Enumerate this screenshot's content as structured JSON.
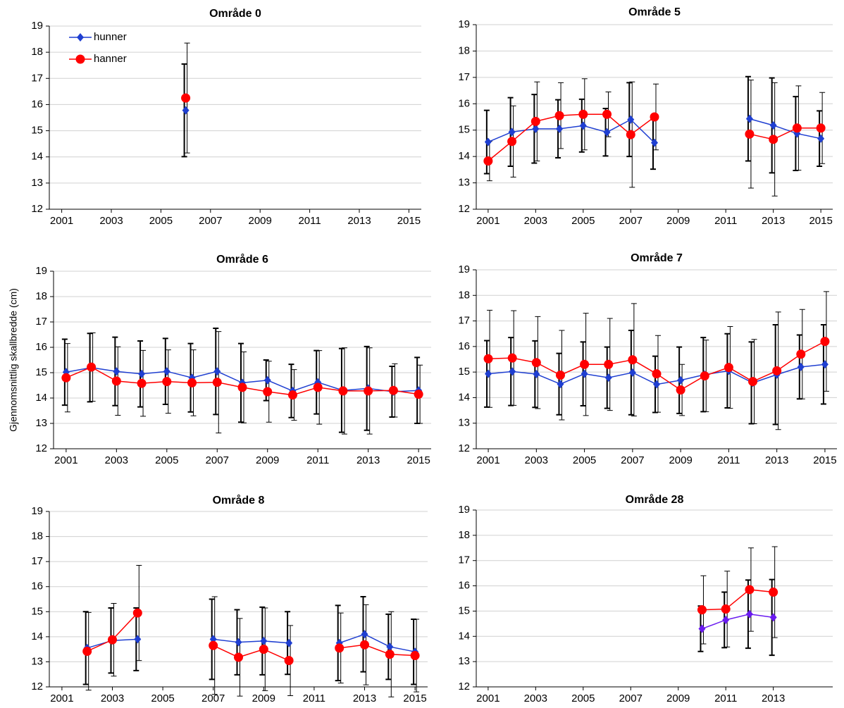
{
  "chart_data": [
    {
      "type": "line",
      "title": "Område 0",
      "legend": "upper left",
      "grid": true,
      "x": [
        2001,
        2002,
        2003,
        2004,
        2005,
        2006,
        2007,
        2008,
        2009,
        2010,
        2011,
        2012,
        2013,
        2014,
        2015
      ],
      "xlim": [
        2000.5,
        2015.5
      ],
      "xticks": [
        2001,
        2003,
        2005,
        2007,
        2009,
        2011,
        2013,
        2015
      ],
      "ylim": [
        12,
        19
      ],
      "yticks": [
        12,
        13,
        14,
        15,
        16,
        17,
        18,
        19
      ],
      "series": [
        {
          "name": "hunner",
          "color": "#1f3fd1",
          "marker": "diamond",
          "values": [
            null,
            null,
            null,
            null,
            null,
            15.78,
            null,
            null,
            null,
            null,
            null,
            null,
            null,
            null,
            null
          ],
          "errors": [
            null,
            null,
            null,
            null,
            null,
            1.77,
            null,
            null,
            null,
            null,
            null,
            null,
            null,
            null,
            null
          ]
        },
        {
          "name": "hanner",
          "color": "#ff0000",
          "marker": "circle",
          "values": [
            null,
            null,
            null,
            null,
            null,
            16.25,
            null,
            null,
            null,
            null,
            null,
            null,
            null,
            null,
            null
          ],
          "errors": [
            null,
            null,
            null,
            null,
            null,
            2.1,
            null,
            null,
            null,
            null,
            null,
            null,
            null,
            null,
            null
          ]
        }
      ]
    },
    {
      "type": "line",
      "title": "Område 5",
      "legend": false,
      "grid": true,
      "x": [
        2001,
        2002,
        2003,
        2004,
        2005,
        2006,
        2007,
        2008,
        2009,
        2010,
        2011,
        2012,
        2013,
        2014,
        2015
      ],
      "xlim": [
        2000.5,
        2015.5
      ],
      "xticks": [
        2001,
        2003,
        2005,
        2007,
        2009,
        2011,
        2013,
        2015
      ],
      "ylim": [
        12,
        19
      ],
      "yticks": [
        12,
        13,
        14,
        15,
        16,
        17,
        18,
        19
      ],
      "series": [
        {
          "name": "hunner",
          "color": "#1f3fd1",
          "marker": "diamond",
          "values": [
            14.55,
            14.93,
            15.05,
            15.05,
            15.17,
            14.92,
            15.4,
            14.52,
            null,
            null,
            null,
            15.43,
            15.18,
            14.87,
            14.68
          ],
          "errors": [
            1.2,
            1.3,
            1.3,
            1.1,
            1.0,
            0.9,
            1.4,
            1.0,
            null,
            null,
            null,
            1.6,
            1.8,
            1.4,
            1.05
          ]
        },
        {
          "name": "hanner",
          "color": "#ff0000",
          "marker": "circle",
          "values": [
            13.83,
            14.57,
            15.33,
            15.55,
            15.6,
            15.6,
            14.83,
            15.5,
            null,
            null,
            null,
            14.85,
            14.65,
            15.08,
            15.08
          ],
          "errors": [
            0.75,
            1.35,
            1.5,
            1.25,
            1.35,
            0.85,
            2.0,
            1.25,
            null,
            null,
            null,
            2.05,
            2.15,
            1.6,
            1.35
          ]
        }
      ]
    },
    {
      "type": "line",
      "title": "Område 6",
      "ylabel": "Gjennomsnittlig  skallbredde  (cm)",
      "legend": false,
      "grid": true,
      "x": [
        2001,
        2002,
        2003,
        2004,
        2005,
        2006,
        2007,
        2008,
        2009,
        2010,
        2011,
        2012,
        2013,
        2014,
        2015
      ],
      "xlim": [
        2000.5,
        2015.5
      ],
      "xticks": [
        2001,
        2003,
        2005,
        2007,
        2009,
        2011,
        2013,
        2015
      ],
      "ylim": [
        12,
        19
      ],
      "yticks": [
        12,
        13,
        14,
        15,
        16,
        17,
        18,
        19
      ],
      "series": [
        {
          "name": "hunner",
          "color": "#1f3fd1",
          "marker": "diamond",
          "values": [
            15.02,
            15.2,
            15.05,
            14.95,
            15.05,
            14.8,
            15.05,
            14.6,
            14.7,
            14.28,
            14.62,
            14.3,
            14.38,
            14.25,
            14.3
          ],
          "errors": [
            1.3,
            1.35,
            1.35,
            1.3,
            1.3,
            1.35,
            1.7,
            1.55,
            0.8,
            1.05,
            1.25,
            1.65,
            1.65,
            1.0,
            1.3
          ]
        },
        {
          "name": "hanner",
          "color": "#ff0000",
          "marker": "circle",
          "values": [
            14.8,
            15.22,
            14.67,
            14.58,
            14.65,
            14.6,
            14.62,
            14.42,
            14.25,
            14.12,
            14.42,
            14.28,
            14.28,
            14.3,
            14.15
          ],
          "errors": [
            1.35,
            1.35,
            1.35,
            1.3,
            1.25,
            1.3,
            2.0,
            1.4,
            1.2,
            1.0,
            1.45,
            1.7,
            1.7,
            1.05,
            1.15
          ]
        }
      ]
    },
    {
      "type": "line",
      "title": "Område 7",
      "legend": false,
      "grid": true,
      "x": [
        2001,
        2002,
        2003,
        2004,
        2005,
        2006,
        2007,
        2008,
        2009,
        2010,
        2011,
        2012,
        2013,
        2014,
        2015
      ],
      "xlim": [
        2000.5,
        2015.5
      ],
      "xticks": [
        2001,
        2003,
        2005,
        2007,
        2009,
        2011,
        2013,
        2015
      ],
      "ylim": [
        12,
        19
      ],
      "yticks": [
        12,
        13,
        14,
        15,
        16,
        17,
        18,
        19
      ],
      "series": [
        {
          "name": "hunner",
          "color": "#1f3fd1",
          "marker": "diamond",
          "values": [
            14.93,
            15.02,
            14.92,
            14.53,
            14.93,
            14.78,
            14.98,
            14.52,
            14.68,
            14.9,
            15.05,
            14.58,
            14.9,
            15.2,
            15.3
          ],
          "errors": [
            1.3,
            1.33,
            1.3,
            1.2,
            1.25,
            1.2,
            1.65,
            1.1,
            1.3,
            1.45,
            1.45,
            1.6,
            1.95,
            1.25,
            1.55
          ]
        },
        {
          "name": "hanner",
          "color": "#ff0000",
          "marker": "circle",
          "values": [
            15.52,
            15.55,
            15.37,
            14.88,
            15.3,
            15.3,
            15.48,
            14.93,
            14.3,
            14.85,
            15.18,
            14.63,
            15.05,
            15.7,
            16.2
          ],
          "errors": [
            1.9,
            1.85,
            1.8,
            1.75,
            2.0,
            1.8,
            2.2,
            1.5,
            1.0,
            1.4,
            1.6,
            1.65,
            2.3,
            1.75,
            1.95
          ]
        }
      ]
    },
    {
      "type": "line",
      "title": "Område 8",
      "legend": false,
      "grid": true,
      "x": [
        2001,
        2002,
        2003,
        2004,
        2005,
        2006,
        2007,
        2008,
        2009,
        2010,
        2011,
        2012,
        2013,
        2014,
        2015
      ],
      "xlim": [
        2000.5,
        2015.5
      ],
      "xticks": [
        2001,
        2003,
        2005,
        2007,
        2009,
        2011,
        2013,
        2015
      ],
      "ylim": [
        12,
        19
      ],
      "yticks": [
        12,
        13,
        14,
        15,
        16,
        17,
        18,
        19
      ],
      "series": [
        {
          "name": "hunner",
          "color": "#1f3fd1",
          "marker": "diamond",
          "values": [
            null,
            13.55,
            13.85,
            13.9,
            null,
            null,
            13.9,
            13.78,
            13.83,
            13.75,
            null,
            13.75,
            14.1,
            13.6,
            13.4
          ],
          "errors": [
            null,
            1.45,
            1.3,
            1.25,
            null,
            null,
            1.6,
            1.3,
            1.35,
            1.25,
            null,
            1.5,
            1.5,
            1.3,
            1.3
          ]
        },
        {
          "name": "hanner",
          "color": "#ff0000",
          "marker": "circle",
          "values": [
            null,
            13.42,
            13.88,
            14.95,
            null,
            null,
            13.65,
            13.18,
            13.5,
            13.05,
            null,
            13.55,
            13.68,
            13.3,
            13.25
          ],
          "errors": [
            null,
            1.55,
            1.45,
            1.9,
            null,
            null,
            1.95,
            1.55,
            1.65,
            1.4,
            null,
            1.4,
            1.6,
            1.7,
            1.45
          ]
        }
      ]
    },
    {
      "type": "line",
      "title": "Område 28",
      "legend": false,
      "grid": true,
      "x": [
        2001,
        2002,
        2003,
        2004,
        2005,
        2006,
        2007,
        2008,
        2009,
        2010,
        2011,
        2012,
        2013,
        2014,
        2015
      ],
      "xlim": [
        2000.5,
        2015.5
      ],
      "xticks": [
        2001,
        2003,
        2005,
        2007,
        2009,
        2011,
        2013
      ],
      "ylim": [
        12,
        19
      ],
      "yticks": [
        12,
        13,
        14,
        15,
        16,
        17,
        18,
        19
      ],
      "series": [
        {
          "name": "hunner",
          "color": "#6a1bf0",
          "marker": "diamond",
          "values": [
            null,
            null,
            null,
            null,
            null,
            null,
            null,
            null,
            null,
            14.3,
            14.65,
            14.88,
            14.75,
            null,
            null
          ],
          "errors": [
            null,
            null,
            null,
            null,
            null,
            null,
            null,
            null,
            null,
            0.9,
            1.1,
            1.35,
            1.5,
            null,
            null
          ]
        },
        {
          "name": "hanner",
          "color": "#ff0000",
          "marker": "circle",
          "values": [
            null,
            null,
            null,
            null,
            null,
            null,
            null,
            null,
            null,
            15.05,
            15.08,
            15.85,
            15.75,
            null,
            null
          ],
          "errors": [
            null,
            null,
            null,
            null,
            null,
            null,
            null,
            null,
            null,
            1.35,
            1.5,
            1.65,
            1.8,
            null,
            null
          ]
        }
      ]
    }
  ]
}
